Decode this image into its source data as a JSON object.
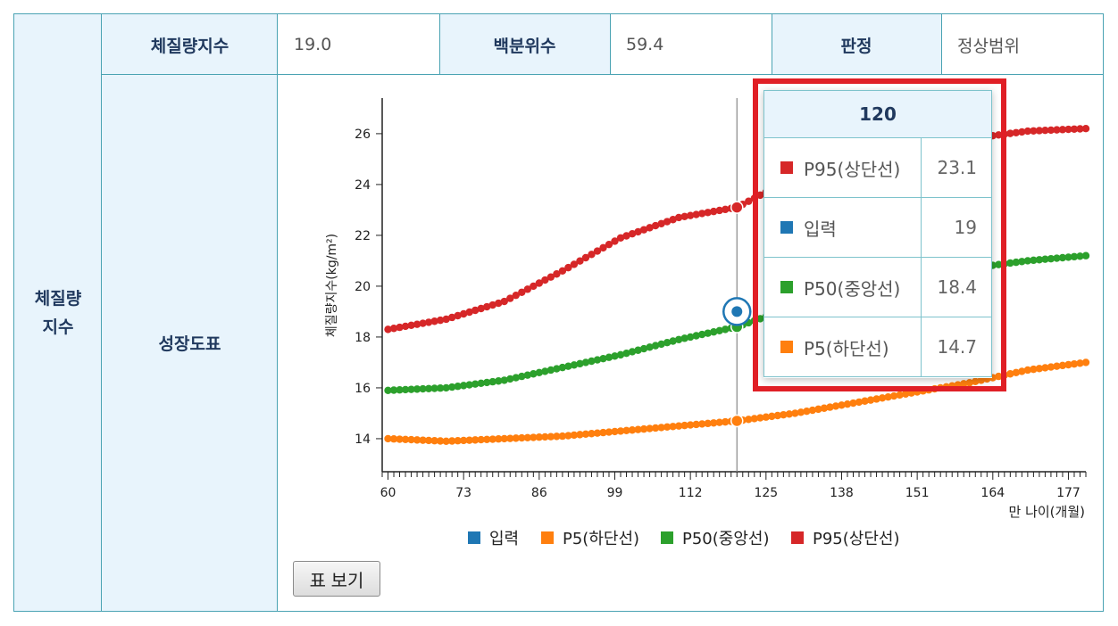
{
  "table": {
    "row_header": "체질량\n지수",
    "bmi_label": "체질량지수",
    "bmi_value": "19.0",
    "percentile_label": "백분위수",
    "percentile_value": "59.4",
    "judgment_label": "판정",
    "judgment_value": "정상범위",
    "chart_label": "성장도표"
  },
  "table_button": "표 보기",
  "colors": {
    "input": "#1f77b4",
    "p5": "#ff7f0e",
    "p50": "#2ca02c",
    "p95": "#d62728"
  },
  "tooltip": {
    "title": "120",
    "rows": [
      {
        "name": "P95(상단선)",
        "value": "23.1",
        "color": "#d62728"
      },
      {
        "name": "입력",
        "value": "19",
        "color": "#1f77b4"
      },
      {
        "name": "P50(중앙선)",
        "value": "18.4",
        "color": "#2ca02c"
      },
      {
        "name": "P5(하단선)",
        "value": "14.7",
        "color": "#ff7f0e"
      }
    ]
  },
  "chart_data": {
    "type": "line",
    "xlabel": "만 나이(개월)",
    "ylabel": "체질량지수(kg/m²)",
    "xlim": [
      59,
      180
    ],
    "ylim": [
      12.7,
      27.4
    ],
    "x_ticks": [
      60,
      73,
      86,
      99,
      112,
      125,
      138,
      151,
      164,
      177
    ],
    "y_ticks": [
      14,
      16,
      18,
      20,
      22,
      24,
      26
    ],
    "legend": [
      "입력",
      "P5(하단선)",
      "P50(중앙선)",
      "P95(상단선)"
    ],
    "legend_position": "bottom",
    "hover_x": 120,
    "series": [
      {
        "name": "P95(상단선)",
        "color": "#d62728",
        "points": [
          [
            60,
            18.3
          ],
          [
            70,
            18.7
          ],
          [
            80,
            19.4
          ],
          [
            90,
            20.6
          ],
          [
            100,
            21.9
          ],
          [
            110,
            22.7
          ],
          [
            120,
            23.1
          ],
          [
            130,
            24.3
          ],
          [
            140,
            25.0
          ],
          [
            150,
            25.5
          ],
          [
            160,
            25.8
          ],
          [
            170,
            26.1
          ],
          [
            180,
            26.2
          ]
        ]
      },
      {
        "name": "P50(중앙선)",
        "color": "#2ca02c",
        "points": [
          [
            60,
            15.9
          ],
          [
            70,
            16.0
          ],
          [
            80,
            16.3
          ],
          [
            90,
            16.8
          ],
          [
            100,
            17.3
          ],
          [
            110,
            17.9
          ],
          [
            120,
            18.4
          ],
          [
            130,
            19.2
          ],
          [
            140,
            19.9
          ],
          [
            150,
            20.4
          ],
          [
            160,
            20.7
          ],
          [
            170,
            21.0
          ],
          [
            180,
            21.2
          ]
        ]
      },
      {
        "name": "P5(하단선)",
        "color": "#ff7f0e",
        "points": [
          [
            60,
            14.0
          ],
          [
            70,
            13.9
          ],
          [
            80,
            14.0
          ],
          [
            90,
            14.1
          ],
          [
            100,
            14.3
          ],
          [
            110,
            14.5
          ],
          [
            120,
            14.7
          ],
          [
            130,
            15.0
          ],
          [
            140,
            15.4
          ],
          [
            150,
            15.8
          ],
          [
            160,
            16.2
          ],
          [
            170,
            16.7
          ],
          [
            180,
            17.0
          ]
        ]
      },
      {
        "name": "입력",
        "color": "#1f77b4",
        "points": [
          [
            120,
            19.0
          ]
        ]
      }
    ]
  }
}
